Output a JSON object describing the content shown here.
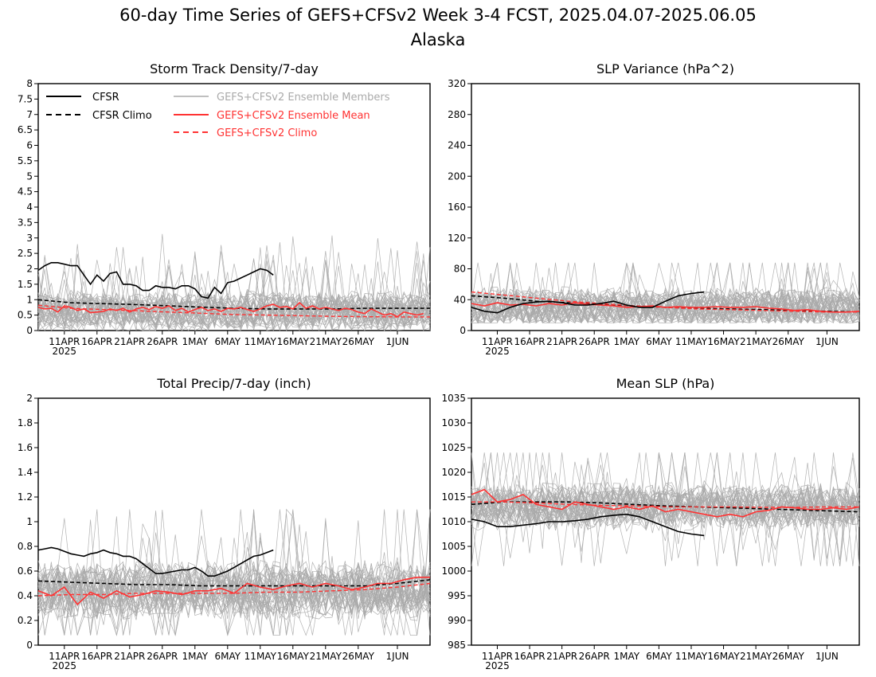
{
  "figure": {
    "title_line1": "60-day Time Series of GEFS+CFSv2 Week 3-4 FCST, 2025.04.07-2025.06.05",
    "title_line2": "Alaska"
  },
  "colors": {
    "cfsr": "#000000",
    "ensemble_members": "#aaaaaa",
    "ensemble_mean": "#ff3333",
    "gefs_climo": "#ff3333"
  },
  "x_axis": {
    "tick_days": [
      4,
      9,
      14,
      19,
      24,
      29,
      34,
      39,
      44,
      49,
      55
    ],
    "tick_labels": [
      "11APR",
      "16APR",
      "21APR",
      "26APR",
      "1MAY",
      "6MAY",
      "11MAY",
      "16MAY",
      "21MAY",
      "26MAY",
      "1JUN"
    ],
    "year_label": "2025",
    "n_days": 60
  },
  "legend": {
    "cfsr": "CFSR",
    "cfsr_climo": "CFSR Climo",
    "members": "GEFS+CFSv2 Ensemble Members",
    "mean": "GEFS+CFSv2 Ensemble Mean",
    "gefs_climo": "GEFS+CFSv2 Climo"
  },
  "chart_data": [
    {
      "type": "line",
      "title": "Storm Track Density/7-day",
      "ylim": [
        0,
        8
      ],
      "yticks": [
        "0",
        "0.5",
        "1",
        "1.5",
        "2",
        "2.5",
        "3",
        "3.5",
        "4",
        "4.5",
        "5",
        "5.5",
        "6",
        "6.5",
        "7",
        "7.5",
        "8"
      ],
      "ensemble_members": {
        "count": 40,
        "center": 0.6,
        "spread": 0.55,
        "min": 0,
        "max": 3.6
      },
      "series": [
        {
          "name": "CFSR",
          "style": "solid-black",
          "x": [
            0,
            1,
            2,
            3,
            4,
            5,
            6,
            7,
            8,
            9,
            10,
            11,
            12,
            13,
            14,
            15,
            16,
            17,
            18,
            19,
            20,
            21,
            22,
            23,
            24,
            25,
            26,
            27,
            28,
            29,
            30,
            31,
            32,
            33,
            34,
            35,
            36
          ],
          "y": [
            1.95,
            2.1,
            2.2,
            2.2,
            2.15,
            2.1,
            2.1,
            1.8,
            1.5,
            1.8,
            1.6,
            1.85,
            1.9,
            1.5,
            1.5,
            1.45,
            1.3,
            1.3,
            1.45,
            1.4,
            1.4,
            1.35,
            1.45,
            1.45,
            1.35,
            1.1,
            1.05,
            1.4,
            1.2,
            1.55,
            1.6,
            1.7,
            1.8,
            1.9,
            2.0,
            1.95,
            1.8
          ]
        },
        {
          "name": "CFSR Climo",
          "style": "dashed-black",
          "x": [
            0,
            5,
            10,
            15,
            20,
            25,
            30,
            35,
            40,
            45,
            50,
            55,
            60
          ],
          "y": [
            1.0,
            0.9,
            0.87,
            0.84,
            0.8,
            0.76,
            0.72,
            0.7,
            0.7,
            0.7,
            0.72,
            0.72,
            0.72
          ]
        },
        {
          "name": "GEFS+CFSv2 Ensemble Mean",
          "style": "solid-red",
          "x": [
            0,
            1,
            2,
            3,
            4,
            5,
            6,
            7,
            8,
            9,
            10,
            11,
            12,
            13,
            14,
            15,
            16,
            17,
            18,
            19,
            20,
            21,
            22,
            23,
            24,
            25,
            26,
            27,
            28,
            29,
            30,
            31,
            32,
            33,
            34,
            35,
            36,
            37,
            38,
            39,
            40,
            41,
            42,
            43,
            44,
            45,
            46,
            47,
            48,
            49,
            50,
            51,
            52,
            53,
            54,
            55,
            56,
            57,
            58,
            59
          ],
          "y": [
            0.75,
            0.7,
            0.72,
            0.6,
            0.8,
            0.75,
            0.65,
            0.7,
            0.58,
            0.6,
            0.62,
            0.7,
            0.65,
            0.72,
            0.6,
            0.7,
            0.75,
            0.68,
            0.78,
            0.72,
            0.8,
            0.65,
            0.72,
            0.6,
            0.68,
            0.75,
            0.65,
            0.7,
            0.62,
            0.72,
            0.7,
            0.75,
            0.68,
            0.62,
            0.7,
            0.8,
            0.85,
            0.75,
            0.78,
            0.7,
            0.9,
            0.72,
            0.8,
            0.7,
            0.75,
            0.7,
            0.65,
            0.72,
            0.68,
            0.6,
            0.55,
            0.7,
            0.6,
            0.5,
            0.55,
            0.45,
            0.6,
            0.55,
            0.5,
            0.55
          ]
        },
        {
          "name": "GEFS+CFSv2 Climo",
          "style": "dashed-red",
          "x": [
            0,
            5,
            10,
            15,
            20,
            25,
            30,
            35,
            40,
            45,
            50,
            55,
            60
          ],
          "y": [
            0.82,
            0.72,
            0.68,
            0.64,
            0.6,
            0.56,
            0.52,
            0.5,
            0.48,
            0.46,
            0.45,
            0.44,
            0.44
          ]
        }
      ]
    },
    {
      "type": "line",
      "title": "SLP Variance (hPa^2)",
      "ylim": [
        0,
        320
      ],
      "yticks": [
        "0",
        "40",
        "80",
        "120",
        "160",
        "200",
        "240",
        "280",
        "320"
      ],
      "ensemble_members": {
        "count": 40,
        "center": 30,
        "spread": 22,
        "min": 10,
        "max": 88
      },
      "series": [
        {
          "name": "CFSR",
          "style": "solid-black",
          "x": [
            0,
            2,
            4,
            6,
            8,
            10,
            12,
            14,
            16,
            18,
            20,
            22,
            24,
            26,
            28,
            30,
            32,
            34,
            36
          ],
          "y": [
            30,
            25,
            23,
            30,
            35,
            37,
            38,
            36,
            33,
            33,
            35,
            38,
            33,
            30,
            30,
            38,
            45,
            48,
            50
          ]
        },
        {
          "name": "CFSR Climo",
          "style": "dashed-black",
          "x": [
            0,
            5,
            10,
            15,
            20,
            25,
            30,
            35,
            40,
            45,
            50,
            55,
            60
          ],
          "y": [
            45,
            42,
            38,
            36,
            34,
            32,
            30,
            29,
            28,
            27,
            26,
            25,
            24
          ]
        },
        {
          "name": "GEFS+CFSv2 Ensemble Mean",
          "style": "solid-red",
          "x": [
            0,
            2,
            4,
            6,
            8,
            10,
            12,
            14,
            16,
            18,
            20,
            22,
            24,
            26,
            28,
            30,
            32,
            34,
            36,
            38,
            40,
            42,
            44,
            46,
            48,
            50,
            52,
            54,
            56,
            58,
            60
          ],
          "y": [
            35,
            32,
            36,
            33,
            34,
            32,
            35,
            33,
            36,
            34,
            33,
            32,
            30,
            31,
            32,
            30,
            31,
            30,
            30,
            31,
            30,
            30,
            31,
            29,
            28,
            26,
            27,
            25,
            24,
            24,
            25
          ]
        },
        {
          "name": "GEFS+CFSv2 Climo",
          "style": "dashed-red",
          "x": [
            0,
            5,
            10,
            15,
            20,
            25,
            30,
            35,
            40,
            45,
            50,
            55,
            60
          ],
          "y": [
            50,
            46,
            42,
            38,
            35,
            32,
            30,
            28,
            27,
            26,
            25,
            24,
            24
          ]
        }
      ]
    },
    {
      "type": "line",
      "title": "Total Precip/7-day (inch)",
      "ylim": [
        0,
        2
      ],
      "yticks": [
        "0",
        "0.2",
        "0.4",
        "0.6",
        "0.8",
        "1",
        "1.2",
        "1.4",
        "1.6",
        "1.8",
        "2"
      ],
      "ensemble_members": {
        "count": 40,
        "center": 0.44,
        "spread": 0.2,
        "min": 0.08,
        "max": 1.1
      },
      "series": [
        {
          "name": "CFSR",
          "style": "solid-black",
          "x": [
            0,
            1,
            2,
            3,
            4,
            5,
            6,
            7,
            8,
            9,
            10,
            11,
            12,
            13,
            14,
            15,
            16,
            17,
            18,
            19,
            20,
            21,
            22,
            23,
            24,
            25,
            26,
            27,
            28,
            29,
            30,
            31,
            32,
            33,
            34,
            35,
            36
          ],
          "y": [
            0.77,
            0.78,
            0.79,
            0.78,
            0.76,
            0.74,
            0.73,
            0.72,
            0.74,
            0.75,
            0.77,
            0.75,
            0.74,
            0.72,
            0.72,
            0.7,
            0.66,
            0.62,
            0.58,
            0.58,
            0.59,
            0.6,
            0.61,
            0.61,
            0.63,
            0.6,
            0.56,
            0.56,
            0.58,
            0.6,
            0.63,
            0.66,
            0.69,
            0.72,
            0.73,
            0.75,
            0.77
          ]
        },
        {
          "name": "CFSR Climo",
          "style": "dashed-black",
          "x": [
            0,
            5,
            10,
            15,
            20,
            25,
            30,
            35,
            40,
            45,
            50,
            55,
            60
          ],
          "y": [
            0.52,
            0.51,
            0.5,
            0.49,
            0.49,
            0.48,
            0.48,
            0.48,
            0.48,
            0.48,
            0.48,
            0.5,
            0.53
          ]
        },
        {
          "name": "GEFS+CFSv2 Ensemble Mean",
          "style": "solid-red",
          "x": [
            0,
            2,
            4,
            6,
            8,
            10,
            12,
            14,
            16,
            18,
            20,
            22,
            24,
            26,
            28,
            30,
            32,
            34,
            36,
            38,
            40,
            42,
            44,
            46,
            48,
            50,
            52,
            54,
            56,
            58,
            60
          ],
          "y": [
            0.44,
            0.4,
            0.47,
            0.33,
            0.43,
            0.38,
            0.44,
            0.39,
            0.41,
            0.44,
            0.43,
            0.41,
            0.44,
            0.44,
            0.46,
            0.42,
            0.5,
            0.47,
            0.45,
            0.48,
            0.5,
            0.47,
            0.5,
            0.48,
            0.45,
            0.47,
            0.5,
            0.5,
            0.53,
            0.55,
            0.55
          ]
        },
        {
          "name": "GEFS+CFSv2 Climo",
          "style": "dashed-red",
          "x": [
            0,
            5,
            10,
            15,
            20,
            25,
            30,
            35,
            40,
            45,
            50,
            55,
            60
          ],
          "y": [
            0.4,
            0.41,
            0.41,
            0.42,
            0.42,
            0.42,
            0.42,
            0.43,
            0.43,
            0.44,
            0.45,
            0.47,
            0.5
          ]
        }
      ]
    },
    {
      "type": "line",
      "title": "Mean SLP (hPa)",
      "ylim": [
        985,
        1035
      ],
      "yticks": [
        "985",
        "990",
        "995",
        "1000",
        "1005",
        "1010",
        "1015",
        "1020",
        "1025",
        "1030",
        "1035"
      ],
      "ensemble_members": {
        "count": 40,
        "center": 1013,
        "spread": 4,
        "min": 1001,
        "max": 1024
      },
      "series": [
        {
          "name": "CFSR",
          "style": "solid-black",
          "x": [
            0,
            2,
            4,
            6,
            8,
            10,
            12,
            14,
            16,
            18,
            20,
            22,
            24,
            26,
            28,
            30,
            32,
            34,
            36
          ],
          "y": [
            1010.5,
            1010,
            1009,
            1009,
            1009.3,
            1009.6,
            1010,
            1010,
            1010.2,
            1010.5,
            1011,
            1011.3,
            1011.5,
            1011,
            1010,
            1009,
            1008,
            1007.5,
            1007.2
          ]
        },
        {
          "name": "CFSR Climo",
          "style": "dashed-black",
          "x": [
            0,
            5,
            10,
            15,
            20,
            25,
            30,
            35,
            40,
            45,
            50,
            55,
            60
          ],
          "y": [
            1013.5,
            1014,
            1014,
            1014,
            1013.8,
            1013.5,
            1013.2,
            1013,
            1012.8,
            1012.6,
            1012.4,
            1012.2,
            1012
          ]
        },
        {
          "name": "GEFS+CFSv2 Ensemble Mean",
          "style": "solid-red",
          "x": [
            0,
            2,
            4,
            6,
            8,
            10,
            12,
            14,
            16,
            18,
            20,
            22,
            24,
            26,
            28,
            30,
            32,
            34,
            36,
            38,
            40,
            42,
            44,
            46,
            48,
            50,
            52,
            54,
            56,
            58,
            60
          ],
          "y": [
            1015.5,
            1016.5,
            1014,
            1014.5,
            1015.5,
            1013.5,
            1013,
            1012.5,
            1014,
            1013.5,
            1013,
            1012.5,
            1013,
            1012.5,
            1013.2,
            1012,
            1012.5,
            1012,
            1011.5,
            1011,
            1011.5,
            1011,
            1012,
            1012.3,
            1013,
            1012.8,
            1012.5,
            1012.5,
            1012.8,
            1012.5,
            1013
          ]
        },
        {
          "name": "GEFS+CFSv2 Climo",
          "style": "dashed-red",
          "x": [
            0,
            5,
            10,
            15,
            20,
            25,
            30,
            35,
            40,
            45,
            50,
            55,
            60
          ],
          "y": [
            1014,
            1014,
            1013.8,
            1013.5,
            1013.3,
            1013.2,
            1013,
            1013,
            1013,
            1012.9,
            1012.9,
            1013,
            1013
          ]
        }
      ]
    }
  ]
}
